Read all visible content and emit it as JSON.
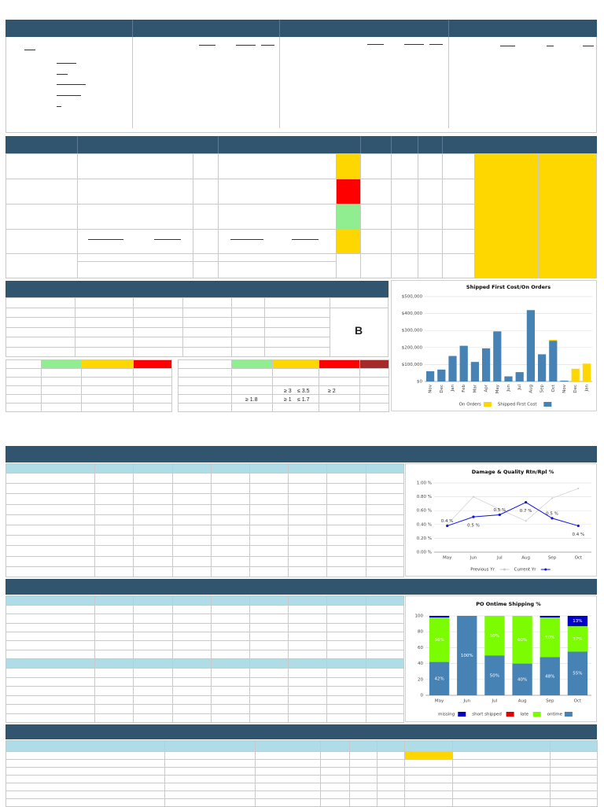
{
  "grade": "B",
  "threshold_table": {
    "rows": [
      [
        "≥ 3",
        "≤ 3.5",
        "≥ 2"
      ],
      [
        "≥ 1.8",
        "≥ 1",
        "≤ 1.7"
      ]
    ]
  },
  "chart_data": [
    {
      "type": "bar",
      "stacked": true,
      "title": "Shipped First Cost/On Orders",
      "categories": [
        "Nov",
        "Dec",
        "Jan",
        "Feb",
        "Mar",
        "Apr",
        "May",
        "Jun",
        "Jul",
        "Aug",
        "Sep",
        "Oct",
        "Nov",
        "Dec",
        "Jan"
      ],
      "series": [
        {
          "name": "On Orders",
          "color": "#ffd700",
          "values": [
            null,
            null,
            null,
            null,
            null,
            null,
            null,
            null,
            null,
            null,
            null,
            5000,
            null,
            75000,
            105000
          ]
        },
        {
          "name": "Shipped First Cost",
          "color": "#4682b4",
          "values": [
            60000,
            70000,
            150000,
            210000,
            115000,
            195000,
            295000,
            30000,
            55000,
            420000,
            160000,
            240000,
            5000,
            null,
            null
          ]
        }
      ],
      "ylim": [
        0,
        500000
      ],
      "yticks": [
        {
          "value": 0,
          "label": "$0"
        },
        {
          "value": 100000,
          "label": "$100,000"
        },
        {
          "value": 200000,
          "label": "$200,000"
        },
        {
          "value": 300000,
          "label": "$300,000"
        },
        {
          "value": 400000,
          "label": "$400,000"
        },
        {
          "value": 500000,
          "label": "$500,000"
        }
      ],
      "grid": true
    },
    {
      "type": "line",
      "title": "Damage & Quality Rtn/Rpl %",
      "categories": [
        "May",
        "Jun",
        "Jul",
        "Aug",
        "Sep",
        "Oct"
      ],
      "series": [
        {
          "name": "Previous Yr",
          "color": "#c8c8d0",
          "values": [
            0.4,
            0.8,
            0.62,
            0.45,
            0.78,
            0.92
          ]
        },
        {
          "name": "Current Yr",
          "color": "#1010e0",
          "values": [
            0.38,
            0.51,
            0.54,
            0.72,
            0.49,
            0.38
          ],
          "value_labels": [
            "0.4 %",
            "0.5 %",
            "0.5 %",
            "0.7 %",
            "0.5 %",
            "0.4 %"
          ]
        }
      ],
      "ylim": [
        0,
        1
      ],
      "yticks": [
        {
          "value": 0,
          "label": "0.00 %"
        },
        {
          "value": 0.2,
          "label": "0.20 %"
        },
        {
          "value": 0.4,
          "label": "0.40 %"
        },
        {
          "value": 0.6,
          "label": "0.60 %"
        },
        {
          "value": 0.8,
          "label": "0.80 %"
        },
        {
          "value": 1,
          "label": "1.00 %"
        }
      ],
      "grid": true
    },
    {
      "type": "bar",
      "stacked": true,
      "title": "PO Ontime Shipping %",
      "categories": [
        "May",
        "Jun",
        "Jul",
        "Aug",
        "Sep",
        "Oct"
      ],
      "series": [
        {
          "name": "missing",
          "color": "#0000c8",
          "values": [
            2,
            null,
            null,
            null,
            2,
            13
          ],
          "value_labels": [
            null,
            null,
            null,
            null,
            null,
            "13%"
          ]
        },
        {
          "name": "short shipped",
          "color": "#e00000",
          "values": [
            null,
            null,
            null,
            null,
            null,
            null
          ]
        },
        {
          "name": "late",
          "color": "#7cfc00",
          "values": [
            56,
            null,
            50,
            60,
            50,
            32
          ],
          "value_labels": [
            "56%",
            null,
            "50%",
            "60%",
            "50%",
            "32%"
          ]
        },
        {
          "name": "ontime",
          "color": "#4682b4",
          "values": [
            42,
            100,
            50,
            40,
            48,
            55
          ],
          "value_labels": [
            "42%",
            "100%",
            "50%",
            "40%",
            "48%",
            "55%"
          ]
        }
      ],
      "ylim": [
        0,
        100
      ],
      "yticks": [
        0,
        20,
        40,
        60,
        80,
        100
      ],
      "grid": true
    }
  ]
}
